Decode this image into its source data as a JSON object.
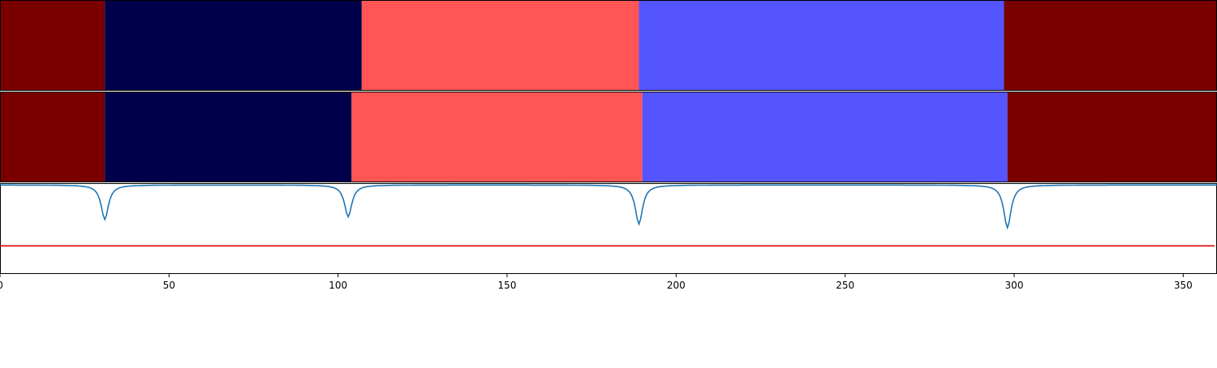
{
  "chart_data": {
    "type": "segmentation-comparison",
    "xlim": [
      0,
      360
    ],
    "x_ticks": [
      0,
      50,
      100,
      150,
      200,
      250,
      300,
      350
    ],
    "x_tick_labels": [
      "0",
      "50",
      "100",
      "150",
      "200",
      "250",
      "300",
      "350"
    ],
    "colors": {
      "class_a": "#7a0000",
      "class_b": "#00004a",
      "class_c": "#ff5555",
      "class_d": "#5555ff",
      "signal_line": "#1f77b4",
      "threshold_line": "#e00000"
    },
    "rows": [
      {
        "segments": [
          {
            "start": 0,
            "end": 31,
            "class": "class_a"
          },
          {
            "start": 31,
            "end": 107,
            "class": "class_b"
          },
          {
            "start": 107,
            "end": 189,
            "class": "class_c"
          },
          {
            "start": 189,
            "end": 297,
            "class": "class_d"
          },
          {
            "start": 297,
            "end": 360,
            "class": "class_a"
          }
        ]
      },
      {
        "segments": [
          {
            "start": 0,
            "end": 31,
            "class": "class_a"
          },
          {
            "start": 31,
            "end": 104,
            "class": "class_b"
          },
          {
            "start": 104,
            "end": 190,
            "class": "class_c"
          },
          {
            "start": 190,
            "end": 298,
            "class": "class_d"
          },
          {
            "start": 298,
            "end": 360,
            "class": "class_a"
          }
        ]
      }
    ],
    "signal": {
      "ylim": [
        0,
        1
      ],
      "baseline": 0.98,
      "dips": [
        {
          "x": 31,
          "min": 0.6
        },
        {
          "x": 103,
          "min": 0.63
        },
        {
          "x": 189,
          "min": 0.55
        },
        {
          "x": 298,
          "min": 0.51
        }
      ]
    },
    "threshold": 0.31
  }
}
